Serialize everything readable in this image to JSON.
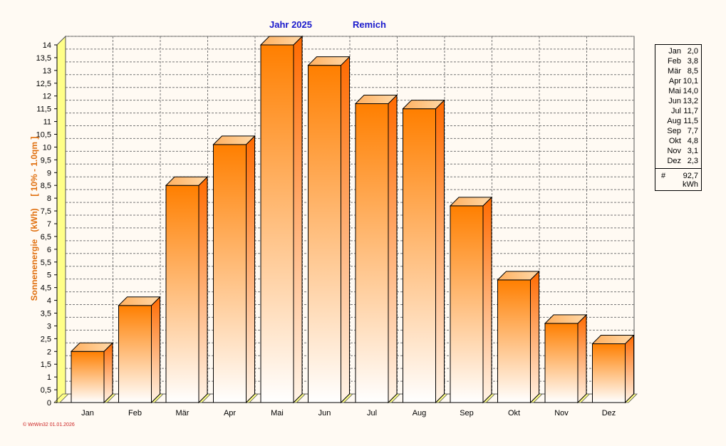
{
  "header": {
    "year_label": "Jahr  2025",
    "location": "Remich"
  },
  "footer": {
    "text": "© WrWin32  01.01.2026"
  },
  "legend": {
    "total_symbol": "#",
    "total_value": "92,7",
    "total_unit": "kWh",
    "items": [
      {
        "month": "Jan",
        "value": "2,0"
      },
      {
        "month": "Feb",
        "value": "3,8"
      },
      {
        "month": "Mär",
        "value": "8,5"
      },
      {
        "month": "Apr",
        "value": "10,1"
      },
      {
        "month": "Mai",
        "value": "14,0"
      },
      {
        "month": "Jun",
        "value": "13,2"
      },
      {
        "month": "Jul",
        "value": "11,7"
      },
      {
        "month": "Aug",
        "value": "11,5"
      },
      {
        "month": "Sep",
        "value": "7,7"
      },
      {
        "month": "Okt",
        "value": "4,8"
      },
      {
        "month": "Nov",
        "value": "3,1"
      },
      {
        "month": "Dez",
        "value": "2,3"
      }
    ]
  },
  "chart_data": {
    "type": "bar",
    "title": "Jahr  2025   Remich",
    "ylabel": "Sonnenenergie   (kWh)     [ 10% - 1.0qm ]",
    "xlabel": "",
    "categories": [
      "Jan",
      "Feb",
      "Mär",
      "Apr",
      "Mai",
      "Jun",
      "Jul",
      "Aug",
      "Sep",
      "Okt",
      "Nov",
      "Dez"
    ],
    "values": [
      2.0,
      3.8,
      8.5,
      10.1,
      14.0,
      13.2,
      11.7,
      11.5,
      7.7,
      4.8,
      3.1,
      2.3
    ],
    "ylim": [
      0,
      14
    ],
    "yticks": [
      "0",
      "0,5",
      "1",
      "1,5",
      "2",
      "2,5",
      "3",
      "3,5",
      "4",
      "4,5",
      "5",
      "5,5",
      "6",
      "6,5",
      "7",
      "7,5",
      "8",
      "8,5",
      "9",
      "9,5",
      "10",
      "10,5",
      "11",
      "11,5",
      "12",
      "12,5",
      "13",
      "13,5",
      "14"
    ],
    "grid": true,
    "legend_position": "right",
    "colors": {
      "bar_top": "#ff7f00",
      "bar_bottom": "#ffffff",
      "wall": "#ffff80",
      "grid": "#888888"
    }
  }
}
